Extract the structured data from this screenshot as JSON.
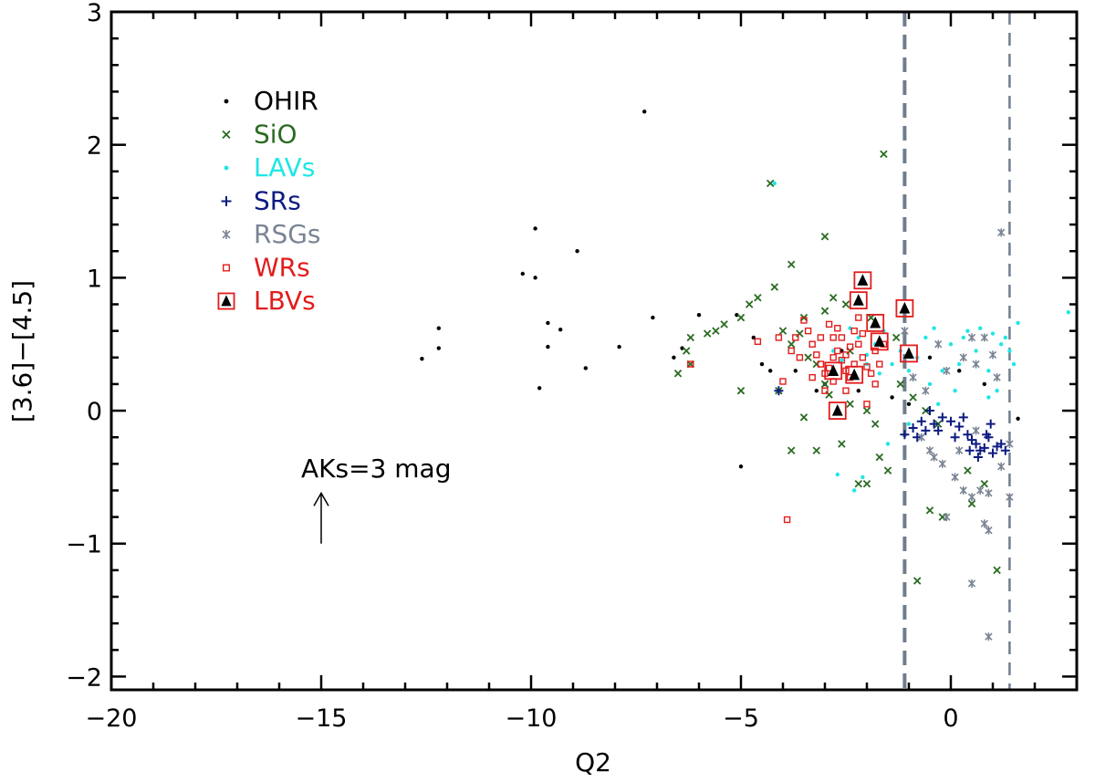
{
  "chart_data": {
    "type": "scatter",
    "xlabel": "Q2",
    "ylabel": "[3.6]−[4.5]",
    "xlim": [
      -20,
      3
    ],
    "ylim": [
      -2.1,
      3
    ],
    "xticks": [
      -20,
      -15,
      -10,
      -5,
      0
    ],
    "yticks": [
      -2,
      -1,
      0,
      1,
      2,
      3
    ],
    "xtick_labels": [
      "−20",
      "−15",
      "−10",
      "−5",
      "0"
    ],
    "ytick_labels": [
      "−2",
      "−1",
      "0",
      "1",
      "2",
      "3"
    ],
    "grid": false,
    "legend_position": "upper-left",
    "vlines": [
      {
        "x": -1.1,
        "color": "#6f7d8c",
        "style": "thick-dashed"
      },
      {
        "x": 1.4,
        "color": "#6f7d8c",
        "style": "dashed"
      }
    ],
    "annotation": {
      "text": "AKs=3 mag",
      "arrow_x": -15.0,
      "arrow_from_y": -1.0,
      "arrow_to_y": -0.62
    },
    "series": [
      {
        "name": "OHIR",
        "marker": "dot",
        "color": "#000000",
        "points": [
          [
            -7.3,
            2.25
          ],
          [
            -9.9,
            1.37
          ],
          [
            -8.9,
            1.2
          ],
          [
            -10.2,
            1.03
          ],
          [
            -9.9,
            1.0
          ],
          [
            -12.2,
            0.62
          ],
          [
            -12.2,
            0.47
          ],
          [
            -12.6,
            0.39
          ],
          [
            -9.6,
            0.66
          ],
          [
            -9.3,
            0.61
          ],
          [
            -9.6,
            0.48
          ],
          [
            -7.9,
            0.48
          ],
          [
            -7.1,
            0.7
          ],
          [
            -8.7,
            0.32
          ],
          [
            -9.8,
            0.17
          ],
          [
            -6.0,
            0.72
          ],
          [
            -5.1,
            0.72
          ],
          [
            -4.7,
            0.55
          ],
          [
            -4.5,
            0.35
          ],
          [
            -5.0,
            -0.42
          ],
          [
            -6.4,
            0.47
          ],
          [
            -6.6,
            0.4
          ],
          [
            -3.7,
            0.3
          ],
          [
            -3.2,
            0.15
          ],
          [
            -2.2,
            0.15
          ],
          [
            -1.4,
            0.1
          ],
          [
            -1.0,
            0.05
          ],
          [
            0.2,
            0.3
          ],
          [
            0.8,
            0.2
          ],
          [
            1.6,
            -0.06
          ],
          [
            -0.5,
            0.4
          ],
          [
            -2.6,
            0.45
          ],
          [
            -4.3,
            0.3
          ],
          [
            -3.0,
            0.2
          ]
        ]
      },
      {
        "name": "SiO",
        "marker": "x",
        "color": "#2a6b22",
        "points": [
          [
            -1.6,
            1.93
          ],
          [
            -4.3,
            1.71
          ],
          [
            -3.0,
            1.31
          ],
          [
            -3.8,
            1.1
          ],
          [
            -4.2,
            0.93
          ],
          [
            -4.6,
            0.85
          ],
          [
            -4.8,
            0.8
          ],
          [
            -5.0,
            0.7
          ],
          [
            -5.4,
            0.65
          ],
          [
            -5.6,
            0.6
          ],
          [
            -5.8,
            0.58
          ],
          [
            -6.2,
            0.55
          ],
          [
            -6.3,
            0.45
          ],
          [
            -6.5,
            0.28
          ],
          [
            -6.2,
            0.35
          ],
          [
            -4.1,
            0.15
          ],
          [
            -5.0,
            0.15
          ],
          [
            -3.6,
            0.58
          ],
          [
            -3.8,
            0.5
          ],
          [
            -3.4,
            0.4
          ],
          [
            -3.0,
            0.75
          ],
          [
            -2.8,
            0.85
          ],
          [
            -2.5,
            0.8
          ],
          [
            -3.2,
            0.35
          ],
          [
            -3.0,
            0.2
          ],
          [
            -2.9,
            0.12
          ],
          [
            -2.4,
            0.05
          ],
          [
            -2.0,
            0.0
          ],
          [
            -1.8,
            -0.1
          ],
          [
            -2.6,
            -0.25
          ],
          [
            -3.5,
            -0.05
          ],
          [
            -3.2,
            -0.3
          ],
          [
            -3.8,
            -0.3
          ],
          [
            -2.2,
            -0.55
          ],
          [
            -2.0,
            -0.55
          ],
          [
            -1.5,
            -0.45
          ],
          [
            -1.7,
            -0.35
          ],
          [
            -1.2,
            0.2
          ],
          [
            -0.9,
            0.1
          ],
          [
            -0.6,
            0.0
          ],
          [
            -0.3,
            -0.1
          ],
          [
            -0.5,
            -0.75
          ],
          [
            -0.2,
            -0.8
          ],
          [
            0.5,
            -0.7
          ],
          [
            0.8,
            -0.55
          ],
          [
            0.4,
            -0.45
          ],
          [
            1.1,
            -1.2
          ],
          [
            -0.8,
            -1.28
          ],
          [
            -2.4,
            0.45
          ],
          [
            -1.9,
            0.7
          ],
          [
            -1.3,
            0.55
          ],
          [
            -3.5,
            0.7
          ],
          [
            -4.0,
            0.6
          ]
        ]
      },
      {
        "name": "LAVs",
        "marker": "dot",
        "color": "#1fe6e6",
        "points": [
          [
            2.8,
            0.74
          ],
          [
            1.6,
            0.66
          ],
          [
            1.3,
            0.55
          ],
          [
            1.4,
            0.45
          ],
          [
            1.5,
            0.35
          ],
          [
            1.1,
            0.15
          ],
          [
            0.9,
            0.1
          ],
          [
            0.6,
            0.45
          ],
          [
            0.4,
            0.6
          ],
          [
            0.2,
            0.35
          ],
          [
            0.0,
            0.5
          ],
          [
            -0.2,
            0.3
          ],
          [
            -0.4,
            0.62
          ],
          [
            -0.6,
            0.55
          ],
          [
            -0.8,
            0.4
          ],
          [
            -1.0,
            0.3
          ],
          [
            -1.2,
            0.45
          ],
          [
            -1.4,
            0.35
          ],
          [
            -1.6,
            0.6
          ],
          [
            -1.8,
            0.5
          ],
          [
            -2.0,
            0.42
          ],
          [
            -2.2,
            0.55
          ],
          [
            -2.4,
            0.62
          ],
          [
            -2.6,
            0.38
          ],
          [
            -2.8,
            0.45
          ],
          [
            -1.1,
            0.75
          ],
          [
            0.9,
            0.3
          ],
          [
            1.2,
            0.5
          ],
          [
            0.1,
            0.15
          ],
          [
            -0.3,
            0.05
          ],
          [
            0.7,
            0.62
          ],
          [
            -0.5,
            0.2
          ],
          [
            -2.0,
            0.35
          ],
          [
            -1.5,
            -0.25
          ],
          [
            -2.1,
            -0.5
          ],
          [
            -2.3,
            -0.6
          ],
          [
            -2.7,
            -0.48
          ],
          [
            -1.0,
            -0.1
          ],
          [
            0.3,
            0.55
          ],
          [
            1.0,
            0.58
          ],
          [
            -1.7,
            0.28
          ],
          [
            -4.2,
            1.71
          ]
        ]
      },
      {
        "name": "SRs",
        "marker": "plus",
        "color": "#0d1a80",
        "points": [
          [
            -1.1,
            -0.18
          ],
          [
            -0.9,
            -0.13
          ],
          [
            -0.7,
            -0.08
          ],
          [
            -0.5,
            0.0
          ],
          [
            -0.4,
            -0.1
          ],
          [
            -0.3,
            -0.15
          ],
          [
            -0.2,
            -0.05
          ],
          [
            0.0,
            -0.08
          ],
          [
            0.1,
            -0.2
          ],
          [
            0.2,
            -0.12
          ],
          [
            0.3,
            -0.05
          ],
          [
            0.4,
            -0.18
          ],
          [
            0.5,
            -0.22
          ],
          [
            0.6,
            -0.25
          ],
          [
            0.7,
            -0.3
          ],
          [
            0.8,
            -0.28
          ],
          [
            0.9,
            -0.2
          ],
          [
            1.0,
            -0.32
          ],
          [
            1.1,
            -0.27
          ],
          [
            1.2,
            -0.25
          ],
          [
            0.85,
            -0.18
          ],
          [
            0.65,
            -0.35
          ],
          [
            0.45,
            -0.3
          ],
          [
            -0.6,
            -0.15
          ],
          [
            -0.8,
            -0.2
          ],
          [
            -4.1,
            0.15
          ],
          [
            0.95,
            -0.1
          ],
          [
            1.3,
            -0.3
          ]
        ]
      },
      {
        "name": "RSGs",
        "marker": "asterisk",
        "color": "#7a8494",
        "points": [
          [
            1.2,
            1.34
          ],
          [
            0.8,
            0.55
          ],
          [
            0.5,
            0.55
          ],
          [
            1.0,
            0.42
          ],
          [
            0.6,
            0.35
          ],
          [
            -0.3,
            0.5
          ],
          [
            -0.1,
            0.3
          ],
          [
            0.3,
            0.4
          ],
          [
            1.1,
            0.25
          ],
          [
            -0.7,
            -0.2
          ],
          [
            -0.5,
            -0.3
          ],
          [
            -0.2,
            -0.4
          ],
          [
            0.1,
            -0.5
          ],
          [
            0.3,
            -0.6
          ],
          [
            0.5,
            -0.65
          ],
          [
            0.7,
            -0.6
          ],
          [
            0.9,
            -0.62
          ],
          [
            0.8,
            -0.85
          ],
          [
            0.9,
            -0.9
          ],
          [
            1.4,
            -0.65
          ],
          [
            1.4,
            -0.25
          ],
          [
            0.5,
            -1.3
          ],
          [
            0.9,
            -1.7
          ],
          [
            -0.1,
            -0.8
          ],
          [
            -0.4,
            -0.35
          ],
          [
            0.2,
            -0.3
          ],
          [
            1.2,
            -0.42
          ],
          [
            0.6,
            -0.15
          ],
          [
            -0.9,
            0.25
          ],
          [
            -0.6,
            0.15
          ],
          [
            -1.1,
            0.6
          ]
        ]
      },
      {
        "name": "WRs",
        "marker": "square",
        "color": "#e21c1c",
        "points": [
          [
            -3.9,
            -0.82
          ],
          [
            -3.7,
            0.55
          ],
          [
            -3.5,
            0.68
          ],
          [
            -3.4,
            0.6
          ],
          [
            -3.3,
            0.5
          ],
          [
            -3.2,
            0.42
          ],
          [
            -3.1,
            0.35
          ],
          [
            -3.0,
            0.28
          ],
          [
            -2.9,
            0.65
          ],
          [
            -2.8,
            0.55
          ],
          [
            -2.7,
            0.45
          ],
          [
            -2.6,
            0.38
          ],
          [
            -2.5,
            0.3
          ],
          [
            -2.4,
            0.25
          ],
          [
            -2.3,
            0.6
          ],
          [
            -2.2,
            0.5
          ],
          [
            -2.1,
            0.4
          ],
          [
            -2.0,
            0.33
          ],
          [
            -1.9,
            0.28
          ],
          [
            -1.8,
            0.2
          ],
          [
            -3.3,
            0.25
          ],
          [
            -3.0,
            0.15
          ],
          [
            -2.6,
            0.55
          ],
          [
            -2.2,
            0.7
          ],
          [
            -2.8,
            0.4
          ],
          [
            -2.4,
            0.48
          ],
          [
            -1.8,
            0.45
          ],
          [
            -2.0,
            0.05
          ],
          [
            -2.5,
            0.15
          ],
          [
            -3.1,
            0.55
          ],
          [
            -4.0,
            0.22
          ],
          [
            -4.6,
            0.52
          ],
          [
            -6.2,
            0.35
          ],
          [
            -4.1,
            0.55
          ],
          [
            -3.8,
            0.45
          ],
          [
            -3.6,
            0.4
          ],
          [
            -2.7,
            0.62
          ],
          [
            -2.9,
            0.32
          ],
          [
            -1.7,
            0.35
          ],
          [
            -2.3,
            0.35
          ],
          [
            -2.5,
            0.42
          ],
          [
            -2.1,
            0.58
          ],
          [
            -1.6,
            0.5
          ],
          [
            -2.8,
            0.22
          ]
        ]
      },
      {
        "name": "LBVs",
        "marker": "triangle-in-square",
        "color": "#e21c1c",
        "points": [
          [
            -2.1,
            0.98
          ],
          [
            -2.2,
            0.83
          ],
          [
            -1.1,
            0.77
          ],
          [
            -1.8,
            0.66
          ],
          [
            -1.7,
            0.52
          ],
          [
            -2.8,
            0.3
          ],
          [
            -2.3,
            0.27
          ],
          [
            -2.7,
            0.0
          ],
          [
            -1.0,
            0.43
          ]
        ]
      }
    ]
  }
}
